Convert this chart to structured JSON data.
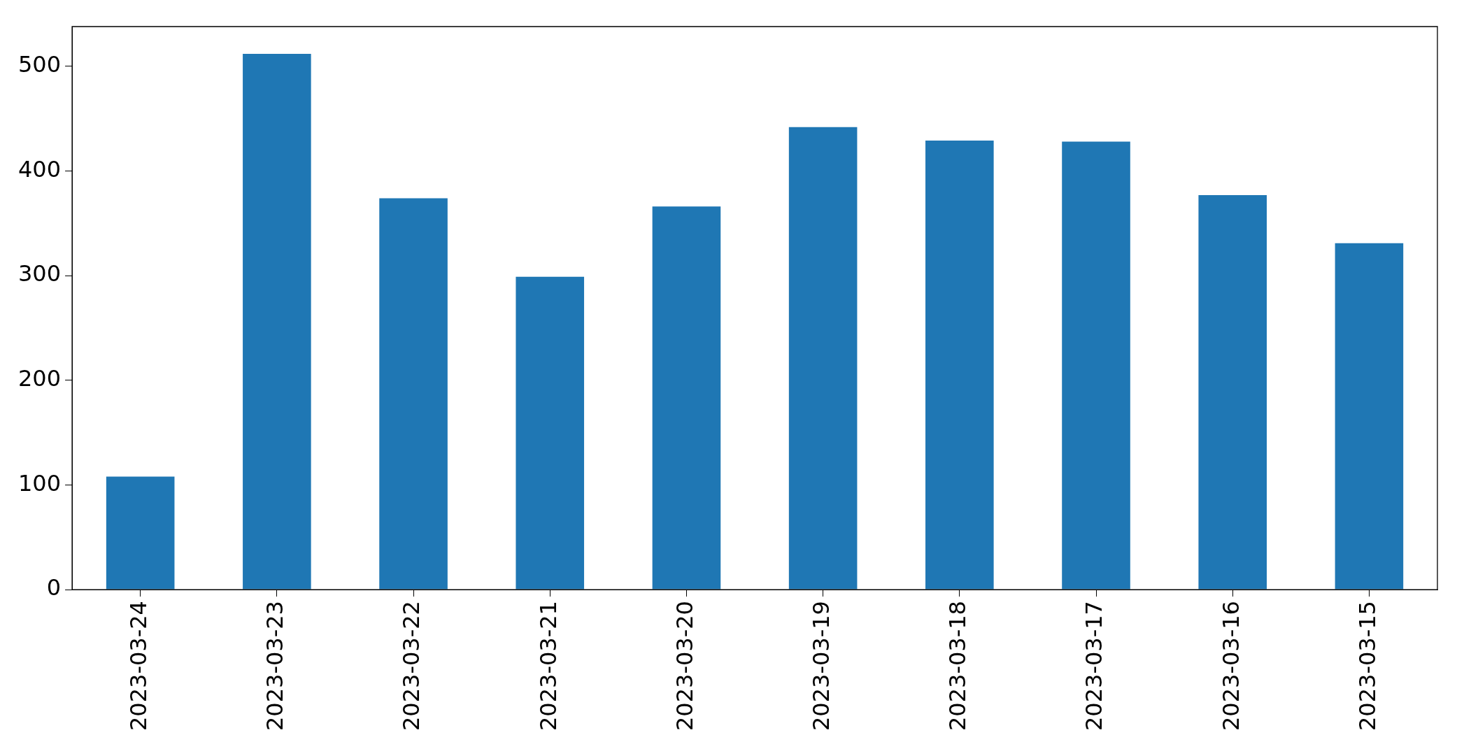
{
  "chart_data": {
    "type": "bar",
    "categories": [
      "2023-03-24",
      "2023-03-23",
      "2023-03-22",
      "2023-03-21",
      "2023-03-20",
      "2023-03-19",
      "2023-03-18",
      "2023-03-17",
      "2023-03-16",
      "2023-03-15"
    ],
    "values": [
      108,
      512,
      374,
      299,
      366,
      442,
      429,
      428,
      377,
      331
    ],
    "color": "#1f77b4",
    "ylim": [
      0,
      538
    ],
    "yticks": [
      0,
      100,
      200,
      300,
      400,
      500
    ],
    "grid": false,
    "legend": false
  }
}
